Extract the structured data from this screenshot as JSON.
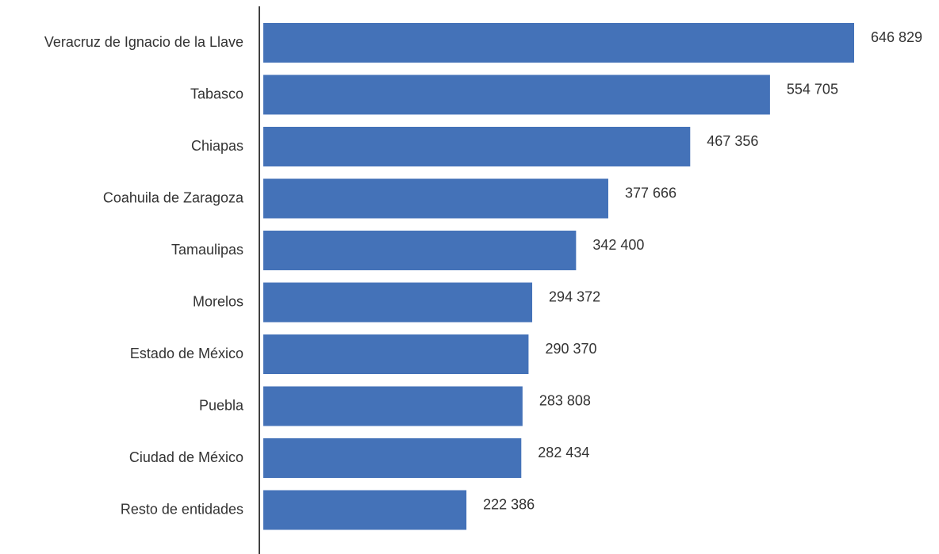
{
  "colors": {
    "bar": "#4472b8",
    "axis": "#404040",
    "text": "#333333"
  },
  "chart_data": {
    "type": "bar",
    "orientation": "horizontal",
    "title": "",
    "xlabel": "",
    "ylabel": "",
    "grid": false,
    "legend": "none",
    "xlim": [
      0,
      700000
    ],
    "categories": [
      "Veracruz de Ignacio de la Llave",
      "Tabasco",
      "Chiapas",
      "Coahuila de Zaragoza",
      "Tamaulipas",
      "Morelos",
      "Estado de México",
      "Puebla",
      "Ciudad de México",
      "Resto de entidades"
    ],
    "values": [
      646829,
      554705,
      467356,
      377666,
      342400,
      294372,
      290370,
      283808,
      282434,
      222386
    ],
    "value_labels": [
      "646 829",
      "554 705",
      "467 356",
      "377 666",
      "342 400",
      "294 372",
      "290 370",
      "283 808",
      "282 434",
      "222 386"
    ]
  }
}
